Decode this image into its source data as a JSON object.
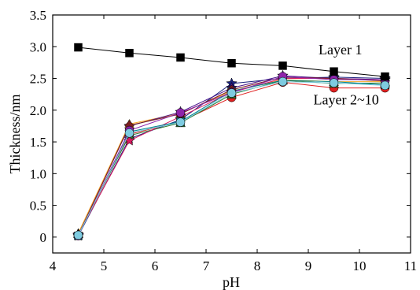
{
  "chart_data": {
    "type": "line",
    "title": "",
    "xlabel": "pH",
    "ylabel": "Thickness/nm",
    "xlim": [
      4,
      11
    ],
    "ylim": [
      -0.25,
      3.5
    ],
    "xticks": [
      4,
      5,
      6,
      7,
      8,
      9,
      10,
      11
    ],
    "xtick_labels": [
      "4",
      "5",
      "6",
      "7",
      "8",
      "9",
      "10",
      "11"
    ],
    "yticks": [
      0,
      0.5,
      1.0,
      1.5,
      2.0,
      2.5,
      3.0,
      3.5
    ],
    "ytick_labels": [
      "0",
      "0.5",
      "1.0",
      "1.5",
      "2.0",
      "2.5",
      "3.0",
      "3.5"
    ],
    "grid": false,
    "x": [
      4.5,
      5.5,
      6.5,
      7.5,
      8.5,
      9.5,
      10.5
    ],
    "series": [
      {
        "color": "#000000",
        "marker": "square",
        "values": [
          2.99,
          2.9,
          2.83,
          2.74,
          2.7,
          2.61,
          2.53
        ]
      },
      {
        "color": "#e02020",
        "marker": "circle",
        "values": [
          0.03,
          1.62,
          1.82,
          2.2,
          2.44,
          2.35,
          2.35
        ]
      },
      {
        "color": "#1a237e",
        "marker": "star",
        "values": [
          0.02,
          1.55,
          1.85,
          2.42,
          2.5,
          2.52,
          2.5
        ]
      },
      {
        "color": "#2e7d32",
        "marker": "triangle",
        "values": [
          0.05,
          1.6,
          1.8,
          2.25,
          2.47,
          2.42,
          2.43
        ]
      },
      {
        "color": "#f9a825",
        "marker": "triangle",
        "values": [
          0.06,
          1.78,
          1.95,
          2.3,
          2.48,
          2.45,
          2.45
        ]
      },
      {
        "color": "#d81b60",
        "marker": "star",
        "values": [
          0.04,
          1.52,
          1.9,
          2.28,
          2.5,
          2.5,
          2.48
        ]
      },
      {
        "color": "#4a148c",
        "marker": "star",
        "values": [
          0.03,
          1.75,
          1.97,
          2.35,
          2.54,
          2.5,
          2.48
        ]
      },
      {
        "color": "#00838f",
        "marker": "square",
        "values": [
          0.02,
          1.66,
          1.82,
          2.3,
          2.47,
          2.45,
          2.4
        ]
      },
      {
        "color": "#7a1f1f",
        "marker": "diamond",
        "values": [
          0.03,
          1.76,
          1.94,
          2.32,
          2.52,
          2.5,
          2.46
        ]
      },
      {
        "color": "#8e24aa",
        "marker": "circle",
        "values": [
          0.02,
          1.68,
          1.96,
          2.28,
          2.53,
          2.48,
          2.48
        ]
      },
      {
        "color": "#7ecbe0",
        "marker": "circle",
        "values": [
          0.03,
          1.64,
          1.81,
          2.27,
          2.45,
          2.43,
          2.39
        ]
      }
    ],
    "annotations": [
      {
        "text": "Layer 1",
        "x": 9.2,
        "y": 2.88
      },
      {
        "text": "Layer 2~10",
        "x": 9.1,
        "y": 2.09
      }
    ]
  }
}
